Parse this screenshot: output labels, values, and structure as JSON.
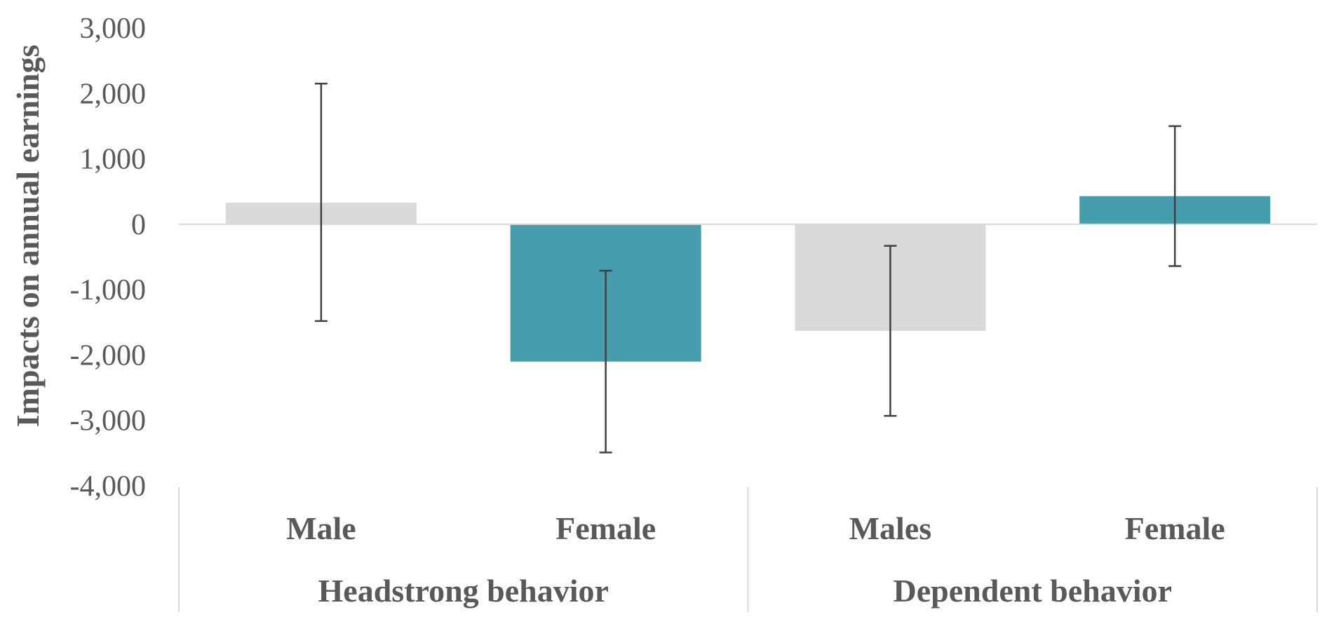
{
  "chart_data": {
    "type": "bar",
    "title": "",
    "ylabel": "Impacts on annual earnings",
    "ylim": [
      -4000,
      3000
    ],
    "yticks": [
      3000,
      2000,
      1000,
      0,
      -1000,
      -2000,
      -3000,
      -4000
    ],
    "ytick_labels": [
      "3,000",
      "2,000",
      "1,000",
      "0",
      "-1,000",
      "-2,000",
      "-3,000",
      "-4,000"
    ],
    "groups": [
      {
        "label": "Headstrong behavior",
        "categories": [
          "Male",
          "Female"
        ]
      },
      {
        "label": "Dependent behavior",
        "categories": [
          "Males",
          "Female"
        ]
      }
    ],
    "categories": [
      "Male",
      "Female",
      "Males",
      "Female"
    ],
    "values": [
      330,
      -2100,
      -1630,
      430
    ],
    "error_low": [
      -1480,
      -3490,
      -2930,
      -640
    ],
    "error_high": [
      2150,
      -710,
      -330,
      1500
    ],
    "bar_colors": [
      "#d9d9d9",
      "#469dad",
      "#d9d9d9",
      "#469dad"
    ],
    "grid": false,
    "legend": "none"
  }
}
